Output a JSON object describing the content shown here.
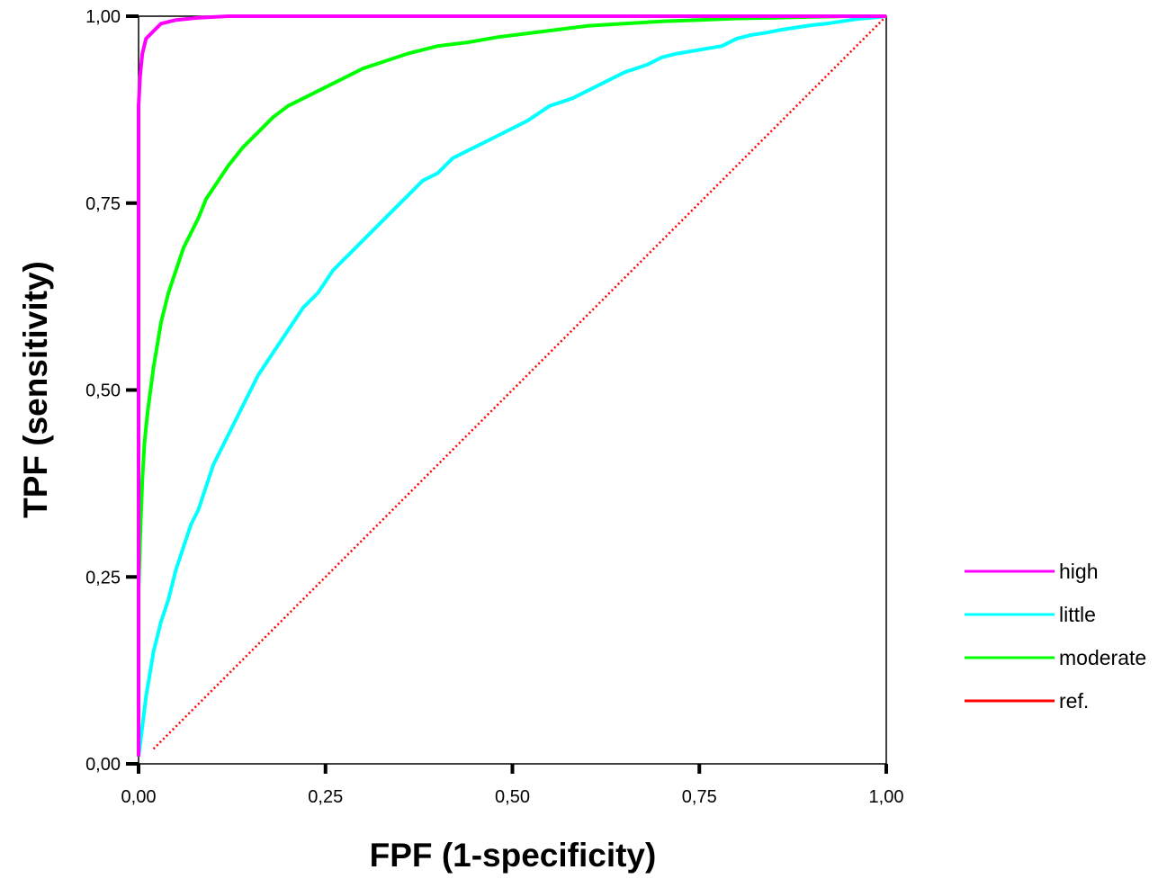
{
  "chart_data": {
    "type": "line",
    "title": "",
    "xlabel": "FPF (1-specificity)",
    "ylabel": "TPF (sensitivity)",
    "xlim": [
      0,
      1
    ],
    "ylim": [
      0,
      1
    ],
    "x_ticks": [
      0,
      0.25,
      0.5,
      0.75,
      1
    ],
    "y_ticks": [
      0,
      0.25,
      0.5,
      0.75,
      1
    ],
    "x_tick_labels": [
      "0,00",
      "0,25",
      "0,50",
      "0,75",
      "1,00"
    ],
    "y_tick_labels": [
      "0,00",
      "0,25",
      "0,50",
      "0,75",
      "1,00"
    ],
    "grid": false,
    "legend_position": "right",
    "series": [
      {
        "name": "high",
        "color": "#ff00ff",
        "style": "solid",
        "x": [
          0.0,
          0.0,
          0.0,
          0.0,
          0.002,
          0.005,
          0.01,
          0.02,
          0.03,
          0.05,
          0.08,
          0.12,
          0.2,
          0.5,
          1.0
        ],
        "y": [
          0.01,
          0.25,
          0.6,
          0.88,
          0.92,
          0.95,
          0.97,
          0.98,
          0.99,
          0.995,
          0.998,
          1.0,
          1.0,
          1.0,
          1.0
        ]
      },
      {
        "name": "little",
        "color": "#00ffff",
        "style": "solid",
        "x": [
          0.0,
          0.005,
          0.01,
          0.015,
          0.02,
          0.03,
          0.04,
          0.05,
          0.06,
          0.07,
          0.08,
          0.09,
          0.1,
          0.12,
          0.14,
          0.16,
          0.18,
          0.2,
          0.22,
          0.24,
          0.26,
          0.28,
          0.3,
          0.32,
          0.34,
          0.36,
          0.38,
          0.4,
          0.42,
          0.44,
          0.46,
          0.48,
          0.5,
          0.52,
          0.55,
          0.58,
          0.6,
          0.62,
          0.65,
          0.68,
          0.7,
          0.72,
          0.75,
          0.78,
          0.8,
          0.82,
          0.84,
          0.86,
          0.88,
          0.9,
          0.92,
          0.94,
          0.96,
          0.98,
          1.0
        ],
        "y": [
          0.01,
          0.05,
          0.09,
          0.12,
          0.15,
          0.19,
          0.22,
          0.26,
          0.29,
          0.32,
          0.34,
          0.37,
          0.4,
          0.44,
          0.48,
          0.52,
          0.55,
          0.58,
          0.61,
          0.63,
          0.66,
          0.68,
          0.7,
          0.72,
          0.74,
          0.76,
          0.78,
          0.79,
          0.81,
          0.82,
          0.83,
          0.84,
          0.85,
          0.86,
          0.88,
          0.89,
          0.9,
          0.91,
          0.925,
          0.935,
          0.945,
          0.95,
          0.955,
          0.96,
          0.97,
          0.975,
          0.978,
          0.982,
          0.985,
          0.988,
          0.99,
          0.993,
          0.996,
          0.998,
          1.0
        ]
      },
      {
        "name": "moderate",
        "color": "#00ff00",
        "style": "solid",
        "x": [
          0.0,
          0.0,
          0.002,
          0.005,
          0.008,
          0.012,
          0.016,
          0.02,
          0.025,
          0.03,
          0.04,
          0.05,
          0.06,
          0.07,
          0.08,
          0.09,
          0.1,
          0.12,
          0.14,
          0.16,
          0.18,
          0.2,
          0.22,
          0.25,
          0.28,
          0.3,
          0.33,
          0.36,
          0.4,
          0.44,
          0.48,
          0.52,
          0.56,
          0.6,
          0.65,
          0.7,
          0.75,
          0.8,
          0.85,
          0.9,
          0.95,
          1.0
        ],
        "y": [
          0.01,
          0.23,
          0.3,
          0.38,
          0.43,
          0.47,
          0.5,
          0.53,
          0.56,
          0.59,
          0.63,
          0.66,
          0.69,
          0.71,
          0.73,
          0.755,
          0.77,
          0.8,
          0.825,
          0.845,
          0.865,
          0.88,
          0.89,
          0.905,
          0.92,
          0.93,
          0.94,
          0.95,
          0.96,
          0.965,
          0.972,
          0.977,
          0.982,
          0.987,
          0.99,
          0.993,
          0.995,
          0.997,
          0.998,
          0.999,
          1.0,
          1.0
        ]
      },
      {
        "name": "ref.",
        "color": "#ff0000",
        "style": "dotted",
        "x": [
          0.02,
          1.0
        ],
        "y": [
          0.02,
          1.0
        ]
      }
    ]
  }
}
